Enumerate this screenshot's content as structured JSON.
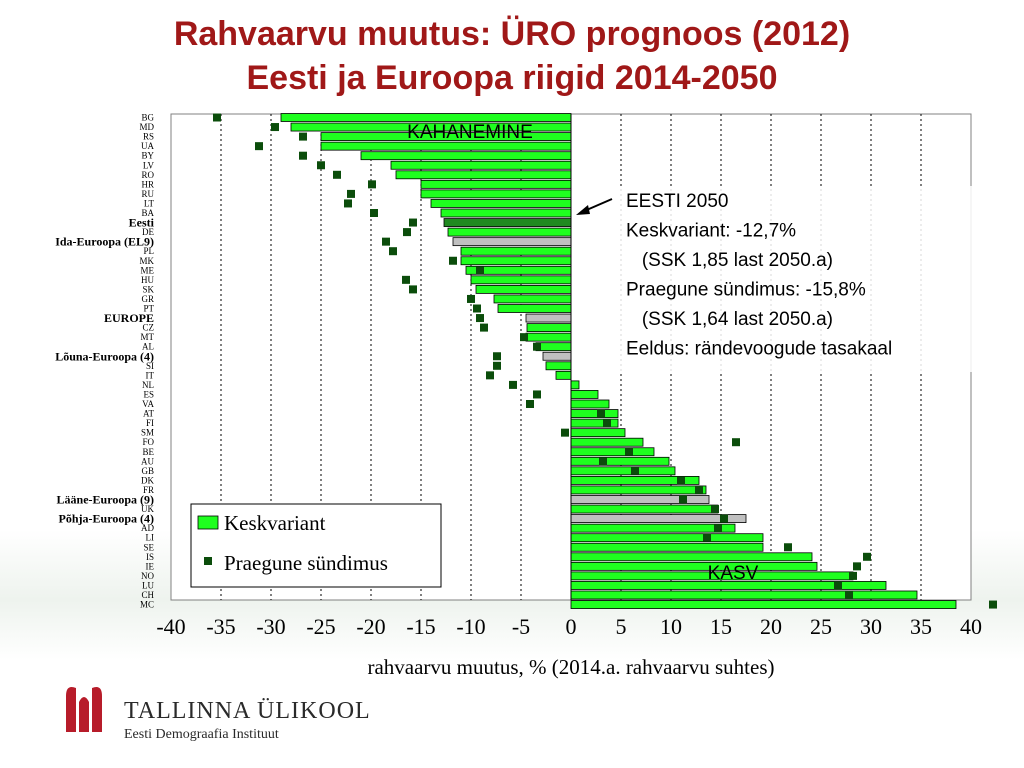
{
  "title": {
    "line1": "Rahvaarvu muutus: ÜRO prognoos (2012)",
    "line2": "Eesti ja Euroopa riigid 2014-2050"
  },
  "annotations": {
    "kahanemine": "KAHANEMINE",
    "kasv": "KASV",
    "eesti_box": [
      "EESTI 2050",
      "Keskvariant: -12,7%",
      "   (SSK 1,85 last 2050.a)",
      "Praegune sündimus: -15,8%",
      "   (SSK 1,64 last 2050.a)",
      "Eeldus: rändevoogude tasakaal"
    ]
  },
  "legend": {
    "keskvariant": "Keskvariant",
    "praegune": "Praegune sündimus"
  },
  "colors": {
    "title": "#a01818",
    "bar": "#1fff1f",
    "bar_eesti": "#208a20",
    "bar_region": "#c0c0c0",
    "marker": "#0b4d0b"
  },
  "footer": {
    "org": "TALLINNA ÜLIKOOL",
    "sub": "Eesti Demograafia Instituut"
  },
  "chart_data": {
    "type": "bar",
    "orientation": "horizontal",
    "xlabel": "rahvaarvu muutus, % (2014.a. rahvaarvu suhtes)",
    "xlim": [
      -40,
      40
    ],
    "xticks": [
      -40,
      -35,
      -30,
      -25,
      -20,
      -15,
      -10,
      -5,
      0,
      5,
      10,
      15,
      20,
      25,
      30,
      35,
      40
    ],
    "grid": "vertical dashed",
    "legend_position": "bottom-left",
    "categories": [
      "BG",
      "MD",
      "RS",
      "UA",
      "BY",
      "LV",
      "RO",
      "HR",
      "RU",
      "LT",
      "BA",
      "Eesti",
      "DE",
      "Ida-Euroopa (EL9)",
      "PL",
      "MK",
      "ME",
      "HU",
      "SK",
      "GR",
      "PT",
      "EUROPE",
      "CZ",
      "MT",
      "AL",
      "Lõuna-Euroopa (4)",
      "SI",
      "IT",
      "NL",
      "ES",
      "VA",
      "AT",
      "FI",
      "SM",
      "FO",
      "BE",
      "AU",
      "GB",
      "DK",
      "FR",
      "Lääne-Euroopa (9)",
      "UK",
      "Põhja-Euroopa (4)",
      "AD",
      "LI",
      "SE",
      "IS",
      "IE",
      "NO",
      "LU",
      "CH",
      "MC"
    ],
    "highlight": {
      "Eesti": "country",
      "Ida-Euroopa (EL9)": "region",
      "EUROPE": "region",
      "Lõuna-Euroopa (4)": "region",
      "Lääne-Euroopa (9)": "region",
      "Põhja-Euroopa (4)": "region"
    },
    "series": [
      {
        "name": "Keskvariant",
        "style": "bar",
        "values": [
          -29,
          -28,
          -25,
          -25,
          -21,
          -18,
          -17.5,
          -15,
          -15,
          -14,
          -13,
          -12.7,
          -12.3,
          -11.8,
          -11,
          -11,
          -10.5,
          -10,
          -9.5,
          -7.7,
          -7.3,
          -4.5,
          -4.4,
          -4.5,
          -3.5,
          -2.8,
          -2.5,
          -1.5,
          0.8,
          2.7,
          3.8,
          4.7,
          4.7,
          5.4,
          7.2,
          8.3,
          9.8,
          10.4,
          12.8,
          13.5,
          13.8,
          14.7,
          17.5,
          16.4,
          19.2,
          19.2,
          24.1,
          24.6,
          28.2,
          31.5,
          34.6,
          38.5
        ]
      },
      {
        "name": "Praegune sündimus",
        "style": "marker",
        "values": [
          -35.4,
          -29.6,
          -26.8,
          -31.2,
          -26.8,
          -25,
          -23.4,
          -19.9,
          -22,
          -22.3,
          -19.7,
          -15.8,
          -16.4,
          -18.5,
          -17.8,
          -11.8,
          -9.1,
          -16.5,
          -15.8,
          -10,
          -9.4,
          -9.1,
          -8.7,
          -4.7,
          -3.4,
          -7.4,
          -7.4,
          -8.1,
          -5.8,
          -3.4,
          -4.1,
          3,
          3.6,
          -0.6,
          16.5,
          5.8,
          3.2,
          6.4,
          11,
          12.8,
          11.2,
          14.4,
          15.3,
          14.7,
          13.6,
          21.7,
          29.6,
          28.6,
          28.2,
          26.7,
          27.8,
          42.2
        ]
      }
    ]
  }
}
